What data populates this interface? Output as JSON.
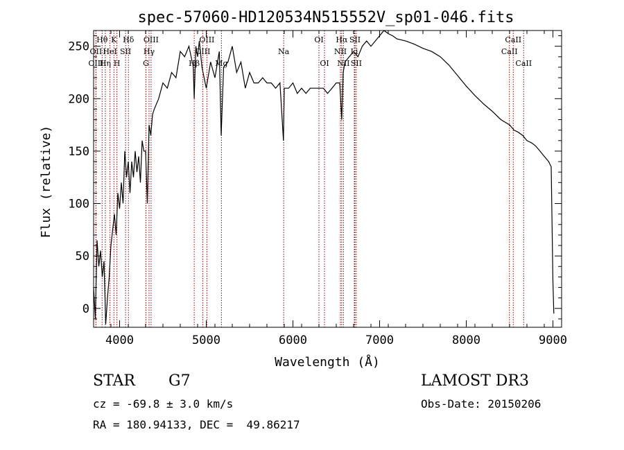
{
  "chart_data": {
    "type": "line",
    "title": "spec-57060-HD120534N515552V_sp01-046.fits",
    "xlabel": "Wavelength (Å)",
    "ylabel": "Flux (relative)",
    "xlim": [
      3700,
      9100
    ],
    "ylim": [
      -18,
      265
    ],
    "xticks": [
      4000,
      5000,
      6000,
      7000,
      8000,
      9000
    ],
    "yticks": [
      0,
      50,
      100,
      150,
      200,
      250
    ],
    "series": [
      {
        "name": "spectrum",
        "x": [
          3700,
          3720,
          3740,
          3760,
          3780,
          3800,
          3820,
          3840,
          3860,
          3880,
          3900,
          3920,
          3940,
          3960,
          3980,
          4000,
          4020,
          4040,
          4060,
          4080,
          4100,
          4120,
          4140,
          4160,
          4180,
          4200,
          4220,
          4240,
          4260,
          4280,
          4300,
          4320,
          4340,
          4360,
          4380,
          4400,
          4450,
          4500,
          4550,
          4600,
          4650,
          4700,
          4750,
          4800,
          4850,
          4861,
          4880,
          4900,
          4920,
          4950,
          5000,
          5050,
          5100,
          5150,
          5172,
          5200,
          5250,
          5300,
          5350,
          5400,
          5450,
          5500,
          5550,
          5600,
          5650,
          5700,
          5750,
          5800,
          5850,
          5890,
          5900,
          5950,
          6000,
          6050,
          6100,
          6150,
          6200,
          6250,
          6300,
          6350,
          6400,
          6450,
          6500,
          6540,
          6563,
          6580,
          6600,
          6650,
          6700,
          6750,
          6800,
          6850,
          6900,
          6950,
          7000,
          7050,
          7100,
          7150,
          7200,
          7300,
          7400,
          7500,
          7600,
          7700,
          7800,
          7900,
          8000,
          8100,
          8200,
          8300,
          8400,
          8500,
          8550,
          8600,
          8650,
          8700,
          8750,
          8800,
          8850,
          8900,
          8950,
          8980,
          9000,
          9010
        ],
        "y": [
          20,
          -10,
          65,
          40,
          55,
          30,
          45,
          -15,
          10,
          30,
          60,
          75,
          90,
          70,
          110,
          95,
          120,
          100,
          150,
          125,
          140,
          110,
          140,
          125,
          150,
          130,
          145,
          120,
          160,
          150,
          150,
          100,
          175,
          165,
          185,
          190,
          200,
          215,
          210,
          225,
          220,
          245,
          240,
          250,
          230,
          200,
          250,
          240,
          255,
          230,
          210,
          235,
          220,
          245,
          165,
          230,
          235,
          250,
          225,
          235,
          210,
          225,
          215,
          215,
          220,
          215,
          215,
          210,
          215,
          160,
          210,
          210,
          215,
          205,
          210,
          205,
          210,
          210,
          210,
          210,
          205,
          210,
          215,
          215,
          180,
          225,
          235,
          240,
          245,
          240,
          250,
          255,
          250,
          255,
          260,
          265,
          262,
          260,
          257,
          255,
          252,
          248,
          245,
          240,
          232,
          222,
          212,
          203,
          195,
          188,
          180,
          175,
          170,
          168,
          165,
          160,
          158,
          155,
          150,
          145,
          140,
          135,
          25,
          -5
        ]
      }
    ],
    "lines": [
      {
        "label": "Hθ",
        "wave": 3798,
        "row": 1
      },
      {
        "label": "OII",
        "wave": 3727,
        "row": 2
      },
      {
        "label": "OIII",
        "wave": 3727,
        "row": 3
      },
      {
        "label": "K",
        "wave": 3934,
        "row": 1
      },
      {
        "label": "HeI",
        "wave": 3889,
        "row": 2
      },
      {
        "label": "Hη",
        "wave": 3835,
        "row": 3
      },
      {
        "label": "SII",
        "wave": 4069,
        "row": 2
      },
      {
        "label": "H",
        "wave": 3969,
        "row": 3
      },
      {
        "label": "Hδ",
        "wave": 4102,
        "row": 1
      },
      {
        "label": "OIII",
        "wave": 4363,
        "row": 1
      },
      {
        "label": "Hγ",
        "wave": 4340,
        "row": 2
      },
      {
        "label": "G",
        "wave": 4304,
        "row": 3
      },
      {
        "label": "OIII",
        "wave": 5007,
        "row": 1
      },
      {
        "label": "OIII",
        "wave": 4959,
        "row": 2
      },
      {
        "label": "Hβ",
        "wave": 4861,
        "row": 3
      },
      {
        "label": "Mg",
        "wave": 5175,
        "row": 3
      },
      {
        "label": "Na",
        "wave": 5893,
        "row": 2
      },
      {
        "label": "OI",
        "wave": 6300,
        "row": 1
      },
      {
        "label": "OI",
        "wave": 6364,
        "row": 3
      },
      {
        "label": "Hα",
        "wave": 6563,
        "row": 1
      },
      {
        "label": "SII",
        "wave": 6716,
        "row": 1
      },
      {
        "label": "NII",
        "wave": 6548,
        "row": 2
      },
      {
        "label": "Li",
        "wave": 6708,
        "row": 2
      },
      {
        "label": "NII",
        "wave": 6583,
        "row": 3
      },
      {
        "label": "SII",
        "wave": 6731,
        "row": 3
      },
      {
        "label": "CaII",
        "wave": 8542,
        "row": 1
      },
      {
        "label": "CaII",
        "wave": 8498,
        "row": 2
      },
      {
        "label": "CaII",
        "wave": 8662,
        "row": 3
      }
    ]
  },
  "info": {
    "object_type": "STAR",
    "subclass": "G7",
    "survey": "LAMOST DR3",
    "redshift": "cz = -69.8 ± 3.0 km/s",
    "obs_date": "Obs-Date: 20150206",
    "coords": "RA = 180.94133, DEC =  49.86217"
  },
  "colors": {
    "line_marker": "#8b0000",
    "spectrum": "#000000"
  }
}
